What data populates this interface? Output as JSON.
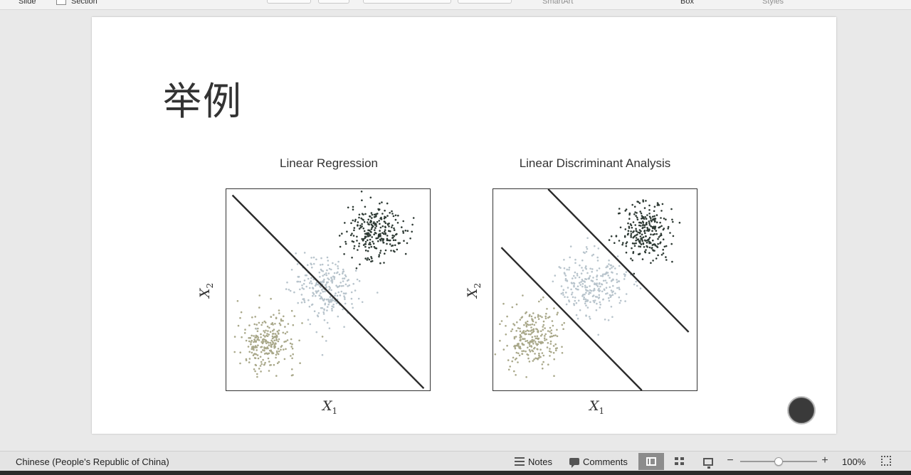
{
  "ribbon": {
    "slide_label": "Slide",
    "section_label": "Section",
    "smartart_label": "SmartArt",
    "box_label": "Box",
    "styles_label": "Styles"
  },
  "slide": {
    "title": "举例",
    "charts": [
      {
        "title": "Linear Regression",
        "xlabel": "X",
        "xsub": "1",
        "ylabel": "X",
        "ysub": "2"
      },
      {
        "title": "Linear Discriminant Analysis",
        "xlabel": "X",
        "xsub": "1",
        "ylabel": "X",
        "ysub": "2"
      }
    ]
  },
  "statusbar": {
    "language": "Chinese (People's Republic of China)",
    "notes_label": "Notes",
    "comments_label": "Comments",
    "zoom_label": "100%",
    "zoom_fraction": 0.5,
    "active_view": "normal"
  },
  "colors": {
    "class_a": "#a9a88a",
    "class_b": "#b8c4cc",
    "class_c": "#2e3a34",
    "boundary": "#2b2b2b"
  },
  "chart_data": [
    {
      "type": "scatter",
      "title": "Linear Regression",
      "xlabel": "X1",
      "ylabel": "X2",
      "xlim": [
        0,
        10
      ],
      "ylim": [
        0,
        10
      ],
      "grid": false,
      "series": [
        {
          "color": "#a9a88a",
          "center": [
            2.0,
            2.4
          ],
          "spread": 0.7,
          "count": 260
        },
        {
          "color": "#b8c4cc",
          "center": [
            4.9,
            5.0
          ],
          "spread": 0.8,
          "count": 260
        },
        {
          "color": "#2e3a34",
          "center": [
            7.3,
            7.9
          ],
          "spread": 0.7,
          "count": 260
        }
      ],
      "lines": [
        {
          "from": [
            0.3,
            9.7
          ],
          "to": [
            9.7,
            0.1
          ]
        }
      ]
    },
    {
      "type": "scatter",
      "title": "Linear Discriminant Analysis",
      "xlabel": "X1",
      "ylabel": "X2",
      "xlim": [
        0,
        10
      ],
      "ylim": [
        0,
        10
      ],
      "grid": false,
      "series": [
        {
          "color": "#a9a88a",
          "center": [
            1.9,
            2.6
          ],
          "spread": 0.7,
          "count": 260
        },
        {
          "color": "#b8c4cc",
          "center": [
            4.9,
            5.3
          ],
          "spread": 0.8,
          "count": 260
        },
        {
          "color": "#2e3a34",
          "center": [
            7.5,
            7.9
          ],
          "spread": 0.7,
          "count": 260
        }
      ],
      "lines": [
        {
          "from": [
            0.4,
            7.1
          ],
          "to": [
            7.3,
            0.0
          ]
        },
        {
          "from": [
            2.7,
            10.0
          ],
          "to": [
            9.6,
            2.9
          ]
        }
      ]
    }
  ]
}
